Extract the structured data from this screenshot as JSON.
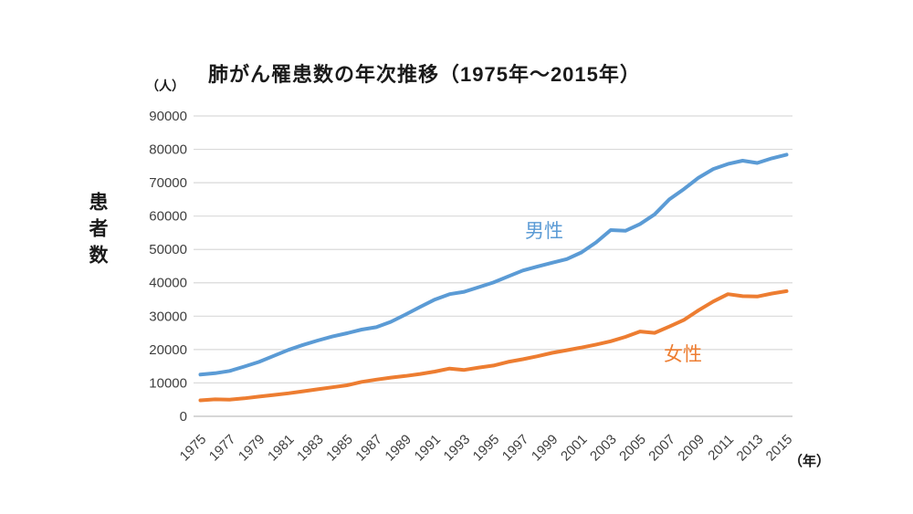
{
  "title": "肺がん罹患数の年次推移（1975年～2015年）",
  "y_axis": {
    "title": "患者数",
    "unit": "（人）",
    "tick_labels": [
      "0",
      "10000",
      "20000",
      "30000",
      "40000",
      "50000",
      "60000",
      "70000",
      "80000",
      "90000"
    ]
  },
  "x_axis": {
    "unit": "（年）",
    "tick_labels": [
      "1975",
      "1977",
      "1979",
      "1981",
      "1983",
      "1985",
      "1987",
      "1989",
      "1991",
      "1993",
      "1995",
      "1997",
      "1999",
      "2001",
      "2003",
      "2005",
      "2007",
      "2009",
      "2011",
      "2013",
      "2015"
    ]
  },
  "series_labels": {
    "male": "男性",
    "female": "女性"
  },
  "colors": {
    "male": "#5B9BD5",
    "female": "#ED7D31",
    "gridline": "#D9D9D9",
    "axis_line": "#BFBFBF",
    "tick_text": "#3f3f3f"
  },
  "chart_data": {
    "type": "line",
    "title": "肺がん罹患数の年次推移（1975年～2015年）",
    "xlabel": "年",
    "ylabel": "患者数（人）",
    "ylim": [
      0,
      90000
    ],
    "y_tick_step": 10000,
    "grid": true,
    "legend": "inline-labels",
    "x": [
      1975,
      1976,
      1977,
      1978,
      1979,
      1980,
      1981,
      1982,
      1983,
      1984,
      1985,
      1986,
      1987,
      1988,
      1989,
      1990,
      1991,
      1992,
      1993,
      1994,
      1995,
      1996,
      1997,
      1998,
      1999,
      2000,
      2001,
      2002,
      2003,
      2004,
      2005,
      2006,
      2007,
      2008,
      2009,
      2010,
      2011,
      2012,
      2013,
      2014,
      2015
    ],
    "series": [
      {
        "name": "男性",
        "color": "#5B9BD5",
        "values": [
          12500,
          12900,
          13600,
          14900,
          16300,
          18100,
          19900,
          21400,
          22700,
          23900,
          24900,
          26000,
          26700,
          28300,
          30500,
          32800,
          35000,
          36600,
          37300,
          38700,
          40100,
          41900,
          43700,
          44900,
          46000,
          47100,
          49100,
          52100,
          55800,
          55600,
          57600,
          60500,
          65000,
          68100,
          71500,
          74100,
          75600,
          76600,
          75900,
          77300,
          78400
        ]
      },
      {
        "name": "女性",
        "color": "#ED7D31",
        "values": [
          4800,
          5100,
          5000,
          5400,
          5900,
          6400,
          6900,
          7500,
          8100,
          8700,
          9300,
          10300,
          11000,
          11600,
          12100,
          12700,
          13400,
          14300,
          13900,
          14600,
          15200,
          16300,
          17100,
          18000,
          19000,
          19800,
          20600,
          21500,
          22500,
          23800,
          25400,
          25000,
          26900,
          28900,
          31800,
          34400,
          36600,
          36000,
          35900,
          36800,
          37500
        ]
      }
    ]
  }
}
